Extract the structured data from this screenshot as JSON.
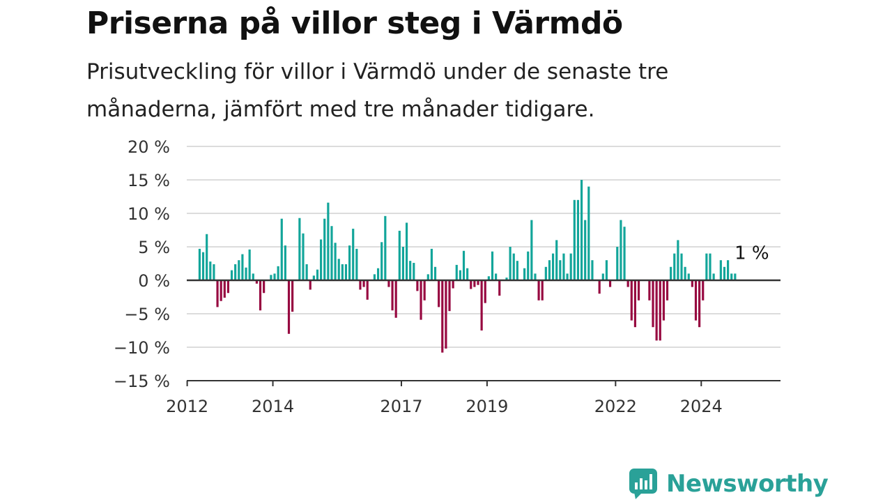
{
  "header": {
    "title": "Priserna på villor steg i Värmdö",
    "subtitle": "Prisutveckling för villor i Värmdö under de senaste tre månaderna, jämfört med tre månader tidigare."
  },
  "brand": {
    "name": "Newsworthy",
    "icon": "newsworthy-logo-icon"
  },
  "colors": {
    "positive": "#12a59a",
    "negative": "#970840",
    "grid": "#dcdcdc",
    "zero_line": "#333333",
    "brand": "#2aa198"
  },
  "chart_data": {
    "type": "bar",
    "title": "Priserna på villor steg i Värmdö",
    "ylim": [
      -15,
      20
    ],
    "y_ticks": [
      20,
      15,
      10,
      5,
      0,
      -5,
      -10,
      -15
    ],
    "y_tick_labels": [
      "20 %",
      "15 %",
      "10 %",
      "5 %",
      "0 %",
      "−5 %",
      "−10 %",
      "−15 %"
    ],
    "x_tick_labels": [
      {
        "label": "2012",
        "x": 2012.0
      },
      {
        "label": "2014",
        "x": 2014.0
      },
      {
        "label": "2017",
        "x": 2017.0
      },
      {
        "label": "2019",
        "x": 2019.0
      },
      {
        "label": "2022",
        "x": 2022.0
      },
      {
        "label": "2024",
        "x": 2024.0
      }
    ],
    "x_start": 2012.29,
    "x_step_months": 1,
    "grid": true,
    "annotation": {
      "text": "1 %",
      "value": 1
    },
    "values": [
      4.7,
      4.2,
      6.9,
      2.8,
      2.4,
      -4.0,
      -3.1,
      -2.6,
      -1.9,
      1.5,
      2.4,
      3.0,
      3.9,
      1.9,
      4.6,
      1.0,
      -0.5,
      -4.5,
      -1.9,
      0.0,
      0.8,
      1.0,
      2.1,
      9.2,
      5.2,
      -8.0,
      -4.7,
      0.0,
      9.3,
      7.0,
      2.4,
      -1.4,
      0.7,
      1.6,
      6.1,
      9.2,
      11.6,
      8.1,
      5.6,
      3.2,
      2.4,
      2.4,
      5.2,
      7.7,
      4.7,
      -1.4,
      -1.0,
      -2.9,
      0.0,
      0.9,
      1.8,
      5.7,
      9.6,
      -1.0,
      -4.5,
      -5.6,
      7.4,
      5.0,
      8.6,
      2.9,
      2.6,
      -1.6,
      -5.9,
      -3.0,
      0.9,
      4.7,
      2.0,
      -4.0,
      -10.8,
      -10.2,
      -4.6,
      -1.2,
      2.3,
      1.5,
      4.4,
      1.8,
      -1.3,
      -1.0,
      -0.7,
      -7.5,
      -3.4,
      0.6,
      4.3,
      1.0,
      -2.3,
      0.0,
      0.4,
      5.0,
      4.0,
      2.9,
      0.0,
      1.8,
      4.3,
      9.0,
      1.0,
      -3.0,
      -3.0,
      2.0,
      3.0,
      4.0,
      6.0,
      3.0,
      4.0,
      1.0,
      4.0,
      12.0,
      12.0,
      15.0,
      9.0,
      14.0,
      3.0,
      0.0,
      -2.0,
      1.0,
      3.0,
      -1.0,
      0.0,
      5.0,
      9.0,
      8.0,
      -1.0,
      -6.0,
      -7.0,
      -3.0,
      0.0,
      0.0,
      -3.0,
      -7.0,
      -9.0,
      -9.0,
      -6.0,
      -3.0,
      2.0,
      4.0,
      6.0,
      4.0,
      2.0,
      1.0,
      -1.0,
      -6.0,
      -7.0,
      -3.0,
      4.0,
      4.0,
      1.0,
      0.0,
      3.0,
      2.0,
      3.0,
      1.0,
      1.0
    ]
  }
}
